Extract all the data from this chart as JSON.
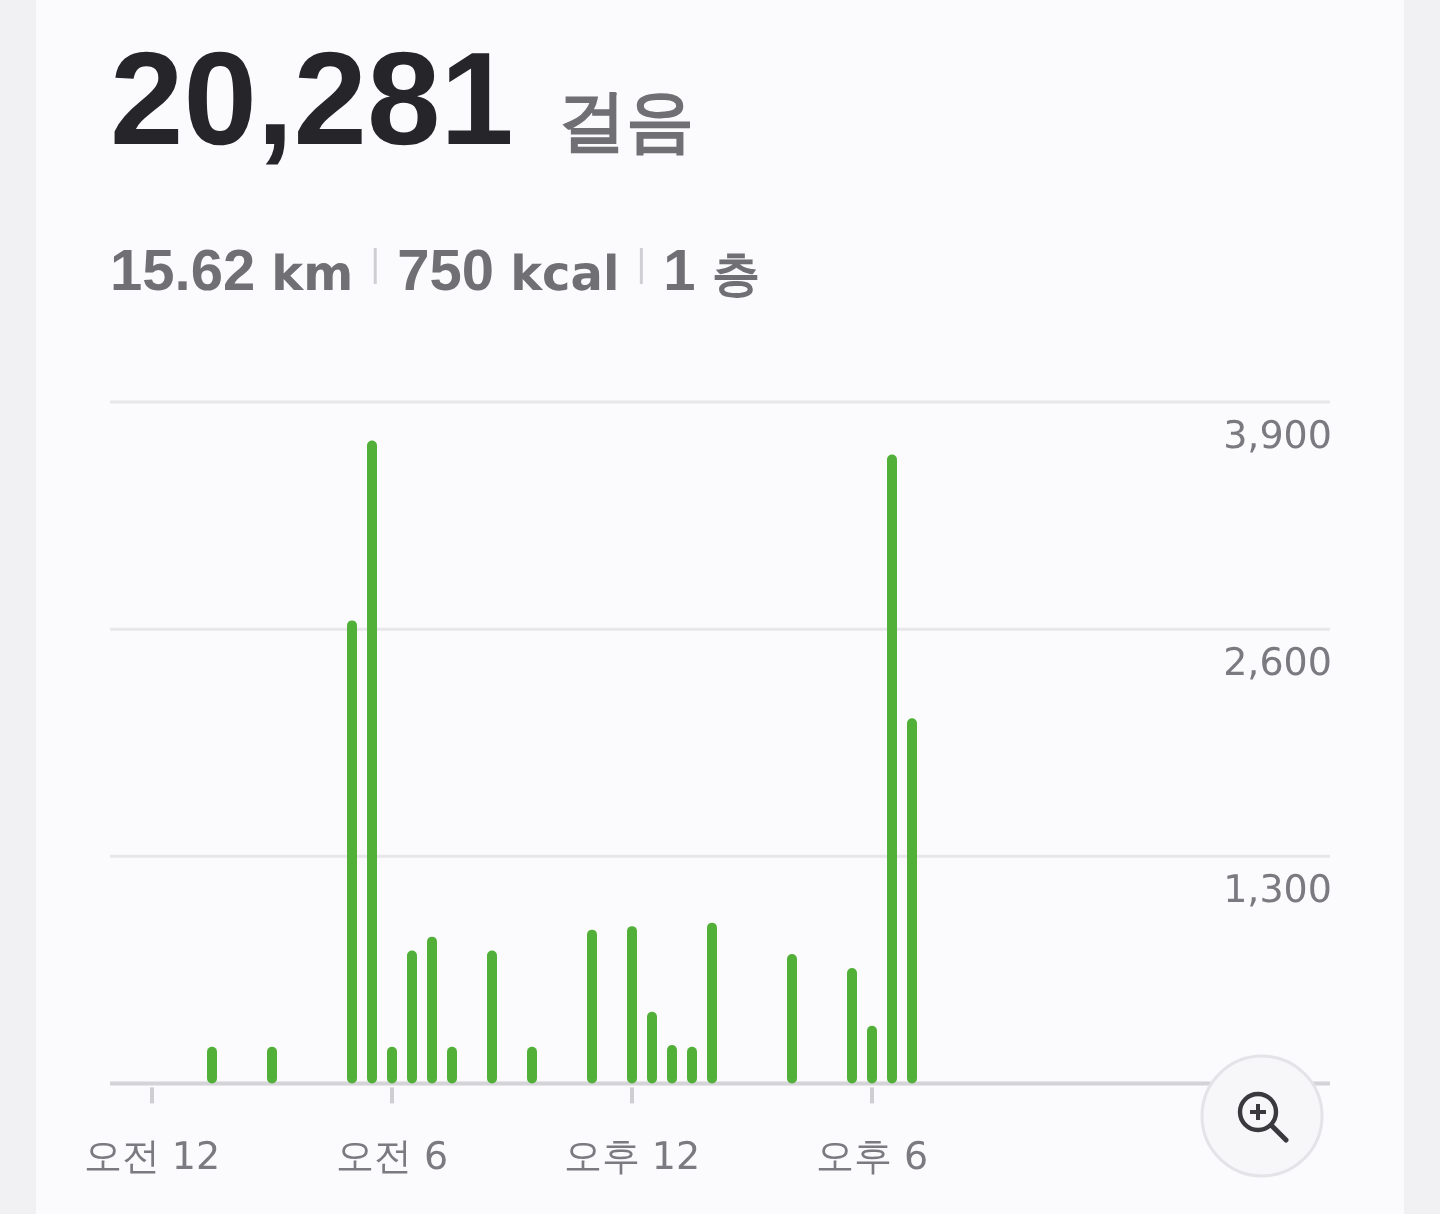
{
  "chart_data": {
    "type": "bar",
    "title": "20,281",
    "subtitle": "걸음",
    "annotations": [
      "15.62 km",
      "750 kcal",
      "1 층"
    ],
    "categories": [
      "오전 12",
      null,
      null,
      null,
      null,
      null,
      null,
      null,
      null,
      null,
      null,
      null,
      "오전 6",
      null,
      null,
      null,
      null,
      null,
      null,
      null,
      null,
      null,
      null,
      null,
      "오후 12",
      null,
      null,
      null,
      null,
      null,
      null,
      null,
      null,
      null,
      null,
      null,
      "오후 6",
      null,
      null,
      null,
      null,
      null,
      null,
      null,
      null,
      null,
      null,
      null
    ],
    "values": [
      0,
      0,
      0,
      210,
      0,
      0,
      210,
      0,
      0,
      0,
      2650,
      3680,
      210,
      760,
      840,
      210,
      0,
      760,
      0,
      210,
      0,
      0,
      880,
      0,
      900,
      410,
      220,
      210,
      920,
      0,
      0,
      0,
      740,
      0,
      0,
      660,
      330,
      3600,
      2090,
      0,
      0,
      0,
      0,
      0,
      0,
      0,
      0,
      0
    ],
    "color": "#52b038",
    "ylim": [
      0,
      3900
    ],
    "yticks": [
      {
        "value": 0,
        "label": null
      },
      {
        "value": 1300,
        "label": "1,300"
      },
      {
        "value": 2600,
        "label": "2,600"
      },
      {
        "value": 3900,
        "label": "3,900"
      }
    ],
    "grid": "y"
  }
}
